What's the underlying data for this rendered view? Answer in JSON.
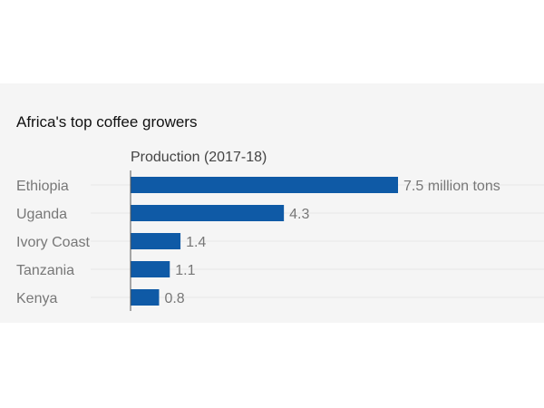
{
  "chart_data": {
    "type": "bar",
    "orientation": "horizontal",
    "title": "Africa's top coffee growers",
    "xlabel": "Production (2017-18)",
    "ylabel": "",
    "categories": [
      "Ethiopia",
      "Uganda",
      "Ivory Coast",
      "Tanzania",
      "Kenya"
    ],
    "values": [
      7.5,
      4.3,
      1.4,
      1.1,
      0.8
    ],
    "data_labels": [
      "7.5 million tons",
      "4.3",
      "1.4",
      "1.1",
      "0.8"
    ],
    "unit": "million tons",
    "xlim": [
      0,
      7.5
    ],
    "grid": true,
    "bar_color": "#0f5aa6"
  }
}
